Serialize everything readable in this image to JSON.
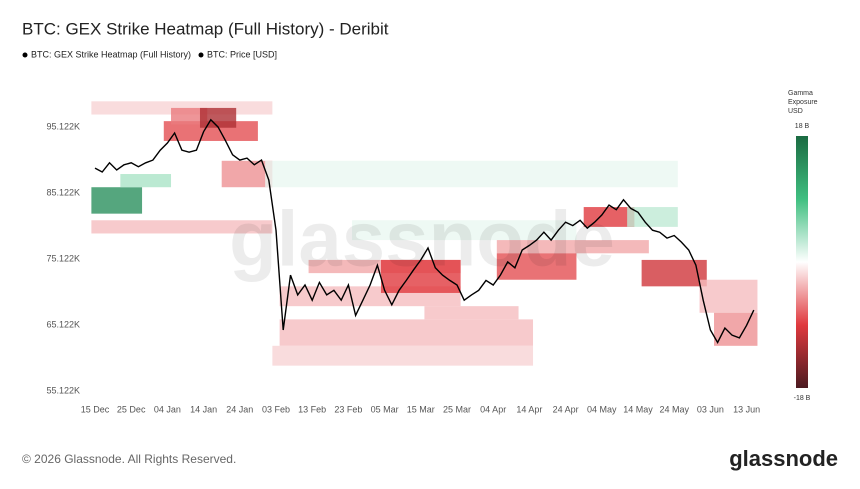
{
  "chart_data": {
    "type": "heatmap",
    "title": "BTC: GEX Strike Heatmap (Full History) - Deribit",
    "watermark": "glassnode",
    "categories": [
      "15 Dec",
      null,
      null,
      null,
      null,
      "25 Dec",
      null,
      null,
      null,
      null,
      "04 Jan",
      null,
      null,
      null,
      null,
      "14 Jan",
      null,
      null,
      null,
      null,
      "24 Jan",
      null,
      null,
      null,
      null,
      "03 Feb",
      null,
      null,
      null,
      null,
      "13 Feb",
      null,
      null,
      null,
      null,
      "23 Feb",
      null,
      null,
      null,
      null,
      "05 Mar",
      null,
      null,
      null,
      null,
      "15 Mar",
      null,
      null,
      null,
      null,
      "25 Mar",
      null,
      null,
      null,
      null,
      "04 Apr",
      null,
      null,
      null,
      null,
      "14 Apr",
      null,
      null,
      null,
      null,
      "24 Apr",
      null,
      null,
      null,
      null,
      "04 May",
      null,
      null,
      null,
      null,
      "14 May",
      null,
      null,
      null,
      null,
      "24 May",
      null,
      null,
      null,
      null,
      "03 Jun",
      null,
      null,
      null,
      null,
      "13 Jun",
      null
    ],
    "ylim": [
      53800,
      99200
    ],
    "yticks": [
      {
        "value": 55122,
        "label": "55.122K"
      },
      {
        "value": 65122,
        "label": "65.122K"
      },
      {
        "value": 75122,
        "label": "75.122K"
      },
      {
        "value": 85122,
        "label": "85.122K"
      },
      {
        "value": 95122,
        "label": "95.122K"
      }
    ],
    "grid": false,
    "colorbar": {
      "title": [
        "Gamma",
        "Exposure",
        "USD"
      ],
      "zlim": [
        -18,
        18
      ],
      "zticks": [
        {
          "value": 18,
          "label": "18 B"
        },
        {
          "value": -18,
          "label": "-18 B"
        }
      ],
      "colors": [
        "#4b1a20",
        "#e0393e",
        "#ffffff",
        "#3fbf80",
        "#1b6b42"
      ]
    },
    "series": [
      {
        "name": "BTC: GEX Strike Heatmap (Full History)",
        "color": "#000000",
        "cells": [
          {
            "x": [
              0,
              6
            ],
            "y": [
              82000,
              86000
            ],
            "value": 14
          },
          {
            "x": [
              4,
              10
            ],
            "y": [
              86000,
              88000
            ],
            "value": 4
          },
          {
            "x": [
              0,
              24
            ],
            "y": [
              79000,
              81000
            ],
            "value": -3
          },
          {
            "x": [
              0,
              24
            ],
            "y": [
              97000,
              99000
            ],
            "value": -2
          },
          {
            "x": [
              10,
              22
            ],
            "y": [
              93000,
              96000
            ],
            "value": -8
          },
          {
            "x": [
              11,
              15
            ],
            "y": [
              95500,
              98000
            ],
            "value": -6
          },
          {
            "x": [
              15,
              19
            ],
            "y": [
              95000,
              98000
            ],
            "value": -12
          },
          {
            "x": [
              18,
              24
            ],
            "y": [
              86000,
              90000
            ],
            "value": -5
          },
          {
            "x": [
              24,
              80
            ],
            "y": [
              86000,
              90000
            ],
            "value": 1
          },
          {
            "x": [
              36,
              66
            ],
            "y": [
              78000,
              81000
            ],
            "value": 1
          },
          {
            "x": [
              30,
              50
            ],
            "y": [
              73000,
              75000
            ],
            "value": -4
          },
          {
            "x": [
              26,
              50
            ],
            "y": [
              68000,
              71000
            ],
            "value": -3
          },
          {
            "x": [
              40,
              50
            ],
            "y": [
              70000,
              75000
            ],
            "value": -9
          },
          {
            "x": [
              26,
              60
            ],
            "y": [
              62000,
              66000
            ],
            "value": -3
          },
          {
            "x": [
              25,
              60
            ],
            "y": [
              59000,
              62000
            ],
            "value": -2
          },
          {
            "x": [
              46,
              58
            ],
            "y": [
              66000,
              68000
            ],
            "value": -3
          },
          {
            "x": [
              56,
              76
            ],
            "y": [
              76000,
              78000
            ],
            "value": -4
          },
          {
            "x": [
              56,
              66
            ],
            "y": [
              72000,
              76000
            ],
            "value": -8
          },
          {
            "x": [
              68,
              74
            ],
            "y": [
              80000,
              83000
            ],
            "value": -9
          },
          {
            "x": [
              74,
              80
            ],
            "y": [
              80000,
              83000
            ],
            "value": 3
          },
          {
            "x": [
              76,
              84
            ],
            "y": [
              71000,
              75000
            ],
            "value": -10
          },
          {
            "x": [
              84,
              91
            ],
            "y": [
              67000,
              72000
            ],
            "value": -3
          },
          {
            "x": [
              86,
              91
            ],
            "y": [
              62000,
              67000
            ],
            "value": -5
          }
        ]
      },
      {
        "name": "BTC: Price [USD]",
        "color": "#000000",
        "values": [
          88900,
          88300,
          89700,
          88600,
          89400,
          89700,
          89100,
          89700,
          90100,
          91600,
          92700,
          94200,
          91600,
          91300,
          91600,
          94400,
          96200,
          95100,
          93100,
          90900,
          90100,
          90400,
          89400,
          90100,
          87100,
          79500,
          64400,
          72700,
          69700,
          71200,
          68900,
          71600,
          69700,
          70400,
          68900,
          71200,
          66600,
          68900,
          71200,
          74200,
          70400,
          68200,
          70400,
          71900,
          73500,
          75000,
          76800,
          73800,
          72700,
          71900,
          71200,
          68900,
          69700,
          70400,
          71900,
          71200,
          72700,
          74700,
          73800,
          76500,
          77200,
          78000,
          79200,
          78000,
          79500,
          80700,
          80200,
          81000,
          79800,
          80700,
          81800,
          83300,
          82600,
          84100,
          82800,
          82200,
          80700,
          79500,
          79200,
          78300,
          78700,
          77700,
          76500,
          74200,
          68900,
          64400,
          62500,
          64700,
          63600,
          63200,
          65100,
          67400
        ]
      }
    ]
  },
  "footer": {
    "copyright": "© 2026 Glassnode. All Rights Reserved.",
    "logo": "glassnode"
  }
}
